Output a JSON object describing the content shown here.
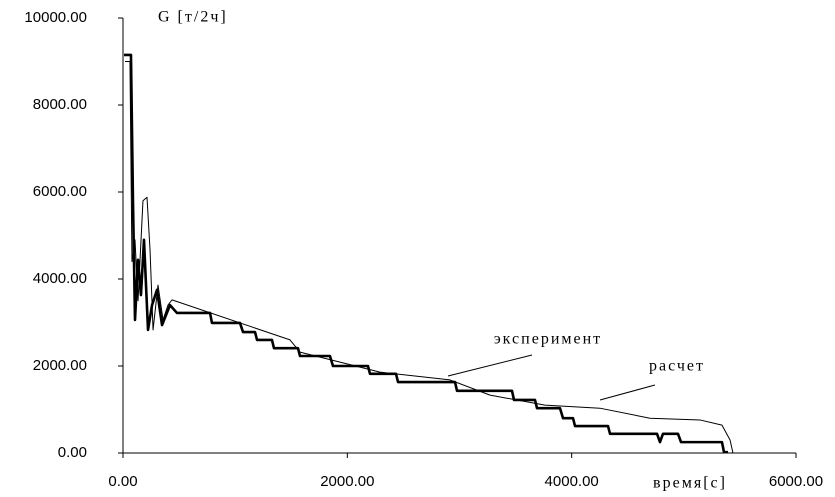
{
  "chart_data": {
    "type": "line",
    "ylabel": "G [т/2ч]",
    "xlabel": "время[с]",
    "xlim": [
      0,
      6000
    ],
    "xticks": [
      {
        "value": 0,
        "label": "0.00"
      },
      {
        "value": 2000,
        "label": "2000.00"
      },
      {
        "value": 4000,
        "label": "4000.00"
      },
      {
        "value": 6000,
        "label": "6000.00"
      }
    ],
    "ylim": [
      0,
      10000
    ],
    "yticks": [
      {
        "value": 0,
        "label": "0.00"
      },
      {
        "value": 2000,
        "label": "2000.00"
      },
      {
        "value": 4000,
        "label": "4000.00"
      },
      {
        "value": 6000,
        "label": "6000.00"
      },
      {
        "value": 8000,
        "label": "8000.00"
      },
      {
        "value": 10000,
        "label": "10000.00"
      }
    ],
    "grid": false,
    "series": [
      {
        "name": "эксперимент",
        "color": "#000000",
        "width": 2.6,
        "x": [
          9,
          71,
          89,
          107,
          134,
          160,
          187,
          223,
          259,
          303,
          348,
          419,
          481,
          776,
          793,
          1043,
          1070,
          1177,
          1195,
          1328,
          1346,
          1560,
          1578,
          1845,
          1872,
          2184,
          2202,
          2434,
          2452,
          2960,
          2978,
          3468,
          3486,
          3673,
          3691,
          3896,
          3923,
          4012,
          4030,
          4324,
          4342,
          4761,
          4787,
          4814,
          4948,
          4975,
          5340,
          5358,
          5394
        ],
        "values": [
          9150,
          9150,
          5800,
          3060,
          4440,
          3630,
          4900,
          2830,
          3400,
          3750,
          2940,
          3400,
          3220,
          3220,
          2990,
          2990,
          2780,
          2780,
          2600,
          2600,
          2410,
          2410,
          2230,
          2230,
          2000,
          2000,
          1820,
          1820,
          1630,
          1630,
          1430,
          1430,
          1220,
          1220,
          1030,
          1030,
          800,
          800,
          620,
          620,
          440,
          440,
          250,
          440,
          440,
          250,
          250,
          20,
          20
        ]
      },
      {
        "name": "расчет",
        "color": "#000000",
        "width": 1,
        "x": [
          18,
          62,
          80,
          107,
          134,
          178,
          214,
          241,
          268,
          312,
          357,
          401,
          437,
          1489,
          1578,
          2291,
          2915,
          3272,
          3762,
          4252,
          4698,
          5144,
          5340,
          5412,
          5438
        ],
        "values": [
          9000,
          9000,
          4400,
          4900,
          3500,
          5800,
          5880,
          4670,
          2830,
          3860,
          3060,
          3400,
          3520,
          2600,
          2320,
          1860,
          1680,
          1330,
          1100,
          1030,
          800,
          760,
          640,
          300,
          0
        ]
      }
    ]
  }
}
